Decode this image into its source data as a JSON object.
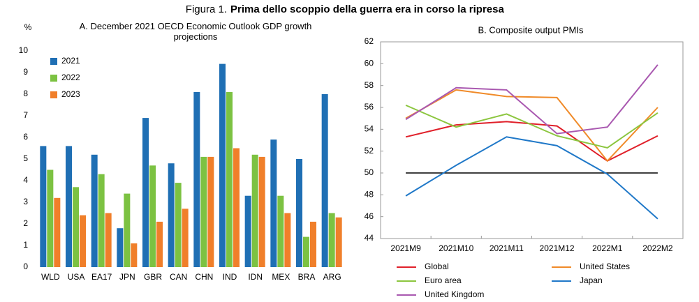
{
  "figure_label": "Figura 1.",
  "figure_title": "Prima dello scoppio della guerra era in corso la ripresa",
  "chart_data": [
    {
      "type": "bar",
      "title": "A. December 2021 OECD Economic Outlook GDP growth projections",
      "y_label": "%",
      "categories": [
        "WLD",
        "USA",
        "EA17",
        "JPN",
        "GBR",
        "CAN",
        "CHN",
        "IND",
        "IDN",
        "MEX",
        "BRA",
        "ARG"
      ],
      "series": [
        {
          "name": "2021",
          "color": "#1f6fb4",
          "values": [
            5.6,
            5.6,
            5.2,
            1.8,
            6.9,
            4.8,
            8.1,
            9.4,
            3.3,
            5.9,
            5.0,
            8.0
          ]
        },
        {
          "name": "2022",
          "color": "#7cc242",
          "values": [
            4.5,
            3.7,
            4.3,
            3.4,
            4.7,
            3.9,
            5.1,
            8.1,
            5.2,
            3.3,
            1.4,
            2.5
          ]
        },
        {
          "name": "2023",
          "color": "#f07f2a",
          "values": [
            3.2,
            2.4,
            2.5,
            1.1,
            2.1,
            2.7,
            5.1,
            5.5,
            5.1,
            2.5,
            2.1,
            2.3
          ]
        }
      ],
      "ylim": [
        0,
        10
      ],
      "yticks": [
        0,
        1,
        2,
        3,
        4,
        5,
        6,
        7,
        8,
        9,
        10
      ],
      "legend": "top-left"
    },
    {
      "type": "line",
      "title": "B. Composite output PMIs",
      "categories": [
        "2021M9",
        "2021M10",
        "2021M11",
        "2021M12",
        "2022M1",
        "2022M2"
      ],
      "series": [
        {
          "name": "Global",
          "color": "#e0202a",
          "values": [
            53.3,
            54.4,
            54.7,
            54.3,
            51.1,
            53.4
          ]
        },
        {
          "name": "United States",
          "color": "#f08a28",
          "values": [
            55.0,
            57.6,
            57.0,
            56.9,
            51.1,
            56.0
          ]
        },
        {
          "name": "Euro area",
          "color": "#8cc63f",
          "values": [
            56.2,
            54.2,
            55.4,
            53.4,
            52.3,
            55.5
          ]
        },
        {
          "name": "Japan",
          "color": "#1f78c8",
          "values": [
            47.9,
            50.7,
            53.3,
            52.5,
            49.9,
            45.8
          ]
        },
        {
          "name": "United Kingdom",
          "color": "#a958b0",
          "values": [
            54.9,
            57.8,
            57.6,
            53.6,
            54.2,
            59.9
          ]
        }
      ],
      "reference_line": 50,
      "ylim": [
        44,
        62
      ],
      "yticks": [
        44,
        46,
        48,
        50,
        52,
        54,
        56,
        58,
        60,
        62
      ],
      "legend": "bottom"
    }
  ]
}
